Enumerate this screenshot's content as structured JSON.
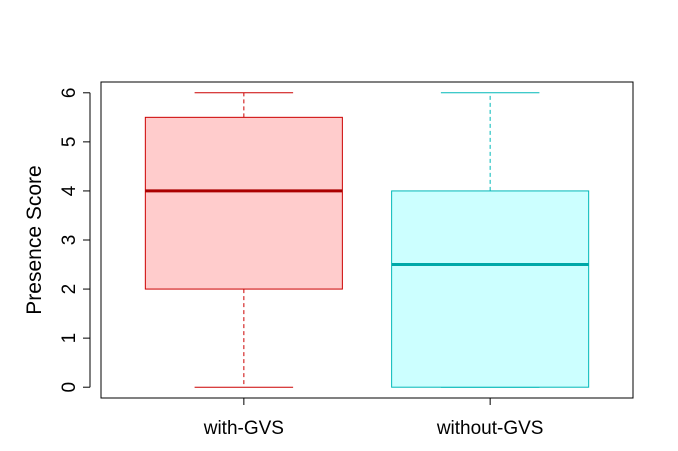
{
  "chart_data": {
    "type": "boxplot",
    "title": "",
    "xlabel": "",
    "ylabel": "Presence Score",
    "ylim": [
      -0.22,
      6.22
    ],
    "yticks": [
      0,
      1,
      2,
      3,
      4,
      5,
      6
    ],
    "ytick_labels": [
      "0",
      "1",
      "2",
      "3",
      "4",
      "5",
      "6"
    ],
    "grid": false,
    "categories": [
      "with-GVS",
      "without-GVS"
    ],
    "boxes": [
      {
        "name": "with-GVS",
        "min": 0,
        "q1": 2,
        "median": 4,
        "q3": 5.5,
        "max": 6,
        "fill": "#ffcccc",
        "stroke": "#cc0000",
        "median_color": "#aa0000"
      },
      {
        "name": "without-GVS",
        "min": 0,
        "q1": 0,
        "median": 2.5,
        "q3": 4,
        "max": 6,
        "fill": "#ccffff",
        "stroke": "#00b8b8",
        "median_color": "#00a8a8"
      }
    ]
  }
}
